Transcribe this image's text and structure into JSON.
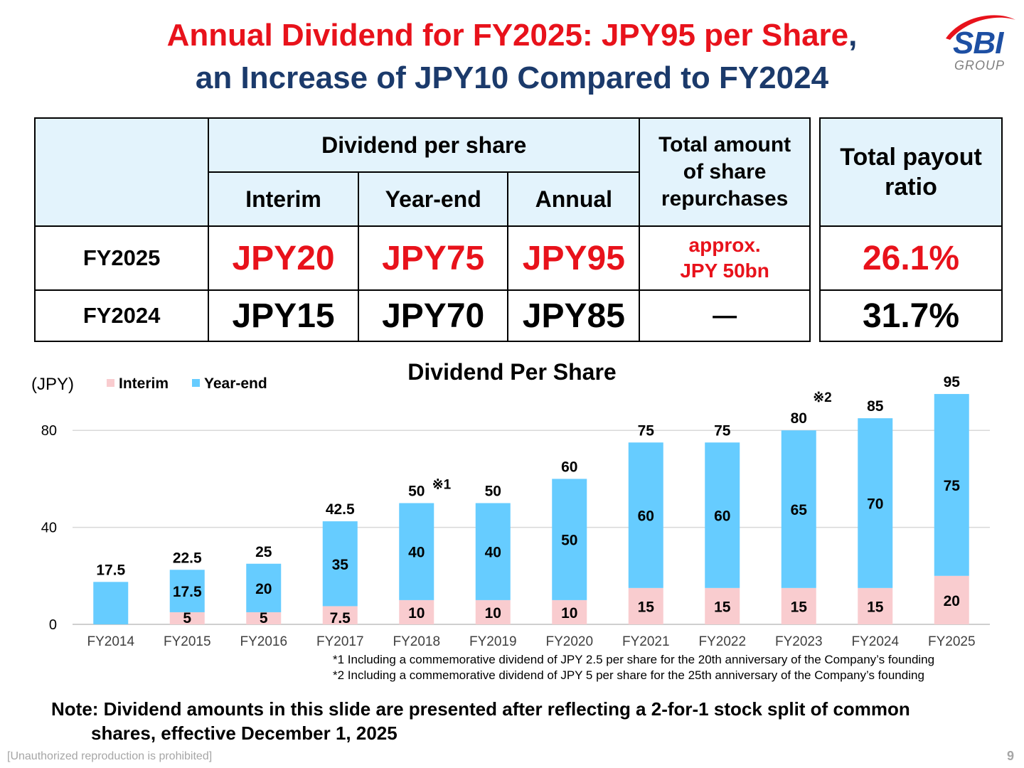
{
  "title_line1": "Annual Dividend for FY2025: JPY95 per Share",
  "title_line1_comma": ",",
  "title_line2": "an Increase of JPY10 Compared to FY2024",
  "logo": {
    "name": "SBI",
    "sub": "GROUP",
    "colors": {
      "blue": "#1d4fa3",
      "red": "#e8121b",
      "gray": "#7f7f7f"
    }
  },
  "table": {
    "dividend_header": "Dividend per share",
    "col_interim": "Interim",
    "col_yearend": "Year-end",
    "col_annual": "Annual",
    "col_repurchase": "Total amount of share repurchases",
    "rows": [
      {
        "year": "FY2025",
        "interim": "JPY20",
        "yearend": "JPY75",
        "annual": "JPY95",
        "repurchase_line1": "approx.",
        "repurchase_line2": "JPY 50bn",
        "payout": "26.1%"
      },
      {
        "year": "FY2024",
        "interim": "JPY15",
        "yearend": "JPY70",
        "annual": "JPY85",
        "repurchase": "―",
        "payout": "31.7%"
      }
    ],
    "payout_header": "Total payout ratio"
  },
  "chart_data": {
    "type": "bar",
    "stacked": true,
    "title": "Dividend Per Share",
    "ylabel": "(JPY)",
    "ylim": [
      0,
      95
    ],
    "yticks": [
      0,
      40,
      80
    ],
    "grid": true,
    "legend_position": "top-left",
    "categories": [
      "FY2014",
      "FY2015",
      "FY2016",
      "FY2017",
      "FY2018",
      "FY2019",
      "FY2020",
      "FY2021",
      "FY2022",
      "FY2023",
      "FY2024",
      "FY2025"
    ],
    "series": [
      {
        "name": "Interim",
        "color": "#f9cccf",
        "values": [
          0,
          5,
          5,
          7.5,
          10,
          10,
          10,
          15,
          15,
          15,
          15,
          20
        ]
      },
      {
        "name": "Year-end",
        "color": "#66ccff",
        "values": [
          17.5,
          17.5,
          20,
          35,
          40,
          40,
          50,
          60,
          60,
          65,
          70,
          75
        ]
      }
    ],
    "totals": [
      "17.5",
      "22.5",
      "25",
      "42.5",
      "50",
      "50",
      "60",
      "75",
      "75",
      "80",
      "85",
      "95"
    ],
    "annotations": [
      {
        "category": "FY2018",
        "text": "※1"
      },
      {
        "category": "FY2023",
        "text": "※2"
      }
    ]
  },
  "footnotes": [
    "*1 Including a commemorative dividend of  JPY 2.5 per share for the 20th anniversary of the Company’s founding",
    "*2 Including a commemorative dividend of  JPY 5 per share for the 25th anniversary of the Company’s founding"
  ],
  "note_line1": "Note: Dividend amounts in this slide are presented after reflecting a 2-for-1 stock split of common",
  "note_line2": "shares, effective December 1, 2025",
  "copyright": "[Unauthorized reproduction is prohibited]",
  "page_number": "9"
}
